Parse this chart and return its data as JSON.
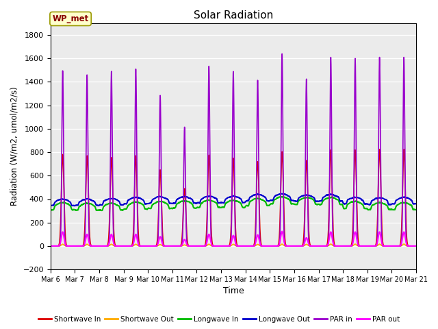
{
  "title": "Solar Radiation",
  "xlabel": "Time",
  "ylabel": "Radiation (W/m2, umol/m2/s)",
  "ylim": [
    -200,
    1900
  ],
  "yticks": [
    -200,
    0,
    200,
    400,
    600,
    800,
    1000,
    1200,
    1400,
    1600,
    1800
  ],
  "bg_color": "#ebebeb",
  "fig_color": "#ffffff",
  "station_label": "WP_met",
  "series_order": [
    "Shortwave In",
    "Shortwave Out",
    "Longwave In",
    "Longwave Out",
    "PAR in",
    "PAR out"
  ],
  "series_colors": {
    "Shortwave In": "#dd0000",
    "Shortwave Out": "#ffaa00",
    "Longwave In": "#00bb00",
    "Longwave Out": "#0000cc",
    "PAR in": "#9900cc",
    "PAR out": "#ff00ff"
  },
  "series_lw": {
    "Shortwave In": 1.2,
    "Shortwave Out": 1.2,
    "Longwave In": 1.5,
    "Longwave Out": 1.5,
    "PAR in": 1.2,
    "PAR out": 1.5
  },
  "n_days": 15,
  "start_day": 6,
  "sw_in_peaks": [
    780,
    770,
    755,
    770,
    650,
    490,
    775,
    750,
    720,
    805,
    730,
    820,
    820,
    825,
    825
  ],
  "par_in_peaks": [
    1495,
    1460,
    1490,
    1510,
    1285,
    1015,
    1535,
    1490,
    1415,
    1640,
    1425,
    1610,
    1600,
    1610,
    1610
  ],
  "par_out_peaks": [
    120,
    100,
    100,
    100,
    80,
    55,
    100,
    90,
    95,
    125,
    70,
    120,
    120,
    120,
    120
  ],
  "lw_in_base": [
    310,
    305,
    305,
    315,
    320,
    325,
    330,
    330,
    345,
    360,
    355,
    355,
    320,
    310,
    310
  ],
  "lw_out_base": [
    345,
    345,
    350,
    360,
    365,
    365,
    370,
    370,
    385,
    390,
    380,
    385,
    360,
    355,
    360
  ],
  "pts_per_day": 288,
  "legend_items": [
    "Shortwave In",
    "Shortwave Out",
    "Longwave In",
    "Longwave Out",
    "PAR in",
    "PAR out"
  ],
  "legend_colors": [
    "#dd0000",
    "#ffaa00",
    "#00bb00",
    "#0000cc",
    "#9900cc",
    "#ff00ff"
  ]
}
